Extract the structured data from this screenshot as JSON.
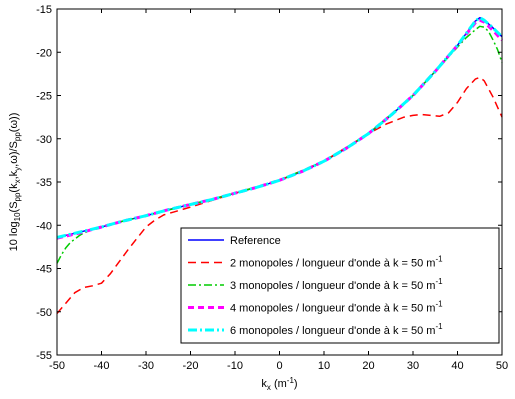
{
  "chart_data": {
    "type": "line",
    "xlabel": {
      "base": "k",
      "sub": "x",
      "rest": " (m",
      "sup": "-1",
      "end": ")"
    },
    "ylabel": {
      "parts": [
        {
          "t": "10 log",
          "s": "normal"
        },
        {
          "t": "10",
          "s": "sub"
        },
        {
          "t": "(S",
          "s": "normal"
        },
        {
          "t": "pp",
          "s": "sub"
        },
        {
          "t": "(k",
          "s": "normal"
        },
        {
          "t": "x",
          "s": "sub"
        },
        {
          "t": ",k",
          "s": "normal"
        },
        {
          "t": "y",
          "s": "sub"
        },
        {
          "t": ",ω)/S",
          "s": "normal"
        },
        {
          "t": "pp",
          "s": "sub"
        },
        {
          "t": "(ω))",
          "s": "normal"
        }
      ]
    },
    "xlim": [
      -50,
      50
    ],
    "ylim": [
      -55,
      -15
    ],
    "xticks": [
      -50,
      -40,
      -30,
      -20,
      -10,
      0,
      10,
      20,
      30,
      40,
      50
    ],
    "yticks": [
      -55,
      -50,
      -45,
      -40,
      -35,
      -30,
      -25,
      -20,
      -15
    ],
    "grid": false,
    "legend_position": "bottom-right",
    "series": [
      {
        "name": "Reference",
        "color": "#0000ff",
        "dash": "solid",
        "width": 1.5,
        "x": [
          -50,
          -45,
          -40,
          -35,
          -30,
          -25,
          -20,
          -15,
          -10,
          -5,
          0,
          5,
          10,
          15,
          20,
          25,
          30,
          35,
          40,
          42,
          44,
          45,
          46,
          48,
          50
        ],
        "y": [
          -41.4,
          -40.8,
          -40.2,
          -39.5,
          -38.9,
          -38.2,
          -37.6,
          -37.0,
          -36.3,
          -35.6,
          -34.8,
          -33.8,
          -32.6,
          -31.1,
          -29.4,
          -27.3,
          -25.0,
          -22.2,
          -19.2,
          -17.8,
          -16.4,
          -16.0,
          -16.3,
          -17.2,
          -18.2
        ]
      },
      {
        "name": "2 monopoles / longueur d'onde à k = 50 m",
        "sup": "-1",
        "color": "#ff0000",
        "dash": "dashed",
        "width": 1.5,
        "x": [
          -50,
          -48,
          -46,
          -44,
          -42,
          -40,
          -38,
          -36,
          -34,
          -32,
          -30,
          -28,
          -26,
          -24,
          -22,
          -20,
          -10,
          0,
          10,
          20,
          24,
          26,
          28,
          30,
          32,
          34,
          36,
          38,
          40,
          42,
          44,
          45,
          46,
          48,
          50
        ],
        "y": [
          -50.2,
          -49.0,
          -47.8,
          -47.2,
          -47.0,
          -46.7,
          -45.6,
          -44.2,
          -42.8,
          -41.5,
          -40.2,
          -39.4,
          -38.8,
          -38.5,
          -38.2,
          -37.9,
          -36.3,
          -34.8,
          -32.6,
          -29.4,
          -28.3,
          -27.9,
          -27.5,
          -27.3,
          -27.2,
          -27.3,
          -27.4,
          -27.0,
          -25.8,
          -24.2,
          -23.1,
          -22.9,
          -23.3,
          -25.2,
          -27.5
        ]
      },
      {
        "name": "3 monopoles / longueur d'onde à k = 50 m",
        "sup": "-1",
        "color": "#00cc00",
        "dash": "dashdot",
        "width": 1.5,
        "x": [
          -50,
          -49,
          -48,
          -47,
          -46,
          -45,
          -44,
          -43,
          -42,
          -41,
          -40,
          -35,
          -30,
          -20,
          -10,
          0,
          10,
          20,
          30,
          35,
          40,
          42,
          44,
          45,
          46,
          47,
          48,
          49,
          50
        ],
        "y": [
          -44.4,
          -43.4,
          -42.6,
          -42.0,
          -41.6,
          -41.2,
          -40.9,
          -40.7,
          -40.5,
          -40.3,
          -40.2,
          -39.5,
          -38.9,
          -37.6,
          -36.3,
          -34.8,
          -32.6,
          -29.4,
          -25.0,
          -22.2,
          -19.4,
          -18.3,
          -17.4,
          -17.0,
          -17.1,
          -17.6,
          -18.6,
          -19.7,
          -21.2
        ]
      },
      {
        "name": "4 monopoles / longueur d'onde à k = 50 m",
        "sup": "-1",
        "color": "#ff00ff",
        "dash": "dashed-thick",
        "width": 3,
        "x": [
          -50,
          -45,
          -40,
          -35,
          -30,
          -25,
          -20,
          -15,
          -10,
          -5,
          0,
          5,
          10,
          15,
          20,
          25,
          30,
          35,
          40,
          42,
          44,
          45,
          46,
          48,
          50
        ],
        "y": [
          -41.5,
          -40.9,
          -40.2,
          -39.5,
          -38.9,
          -38.2,
          -37.6,
          -37.0,
          -36.3,
          -35.6,
          -34.8,
          -33.8,
          -32.6,
          -31.1,
          -29.4,
          -27.3,
          -25.0,
          -22.2,
          -19.2,
          -17.9,
          -16.6,
          -16.3,
          -16.5,
          -17.5,
          -18.6
        ]
      },
      {
        "name": "6 monopoles / longueur d'onde à k = 50 m",
        "sup": "-1",
        "color": "#00ffff",
        "dash": "dashdot-thick",
        "width": 3,
        "x": [
          -50,
          -45,
          -40,
          -35,
          -30,
          -25,
          -20,
          -15,
          -10,
          -5,
          0,
          5,
          10,
          15,
          20,
          25,
          30,
          35,
          40,
          42,
          44,
          45,
          46,
          48,
          50
        ],
        "y": [
          -41.4,
          -40.8,
          -40.2,
          -39.5,
          -38.9,
          -38.2,
          -37.6,
          -37.0,
          -36.3,
          -35.6,
          -34.8,
          -33.8,
          -32.6,
          -31.1,
          -29.4,
          -27.3,
          -25.0,
          -22.2,
          -19.2,
          -17.8,
          -16.4,
          -16.0,
          -16.3,
          -17.2,
          -18.2
        ]
      }
    ]
  }
}
